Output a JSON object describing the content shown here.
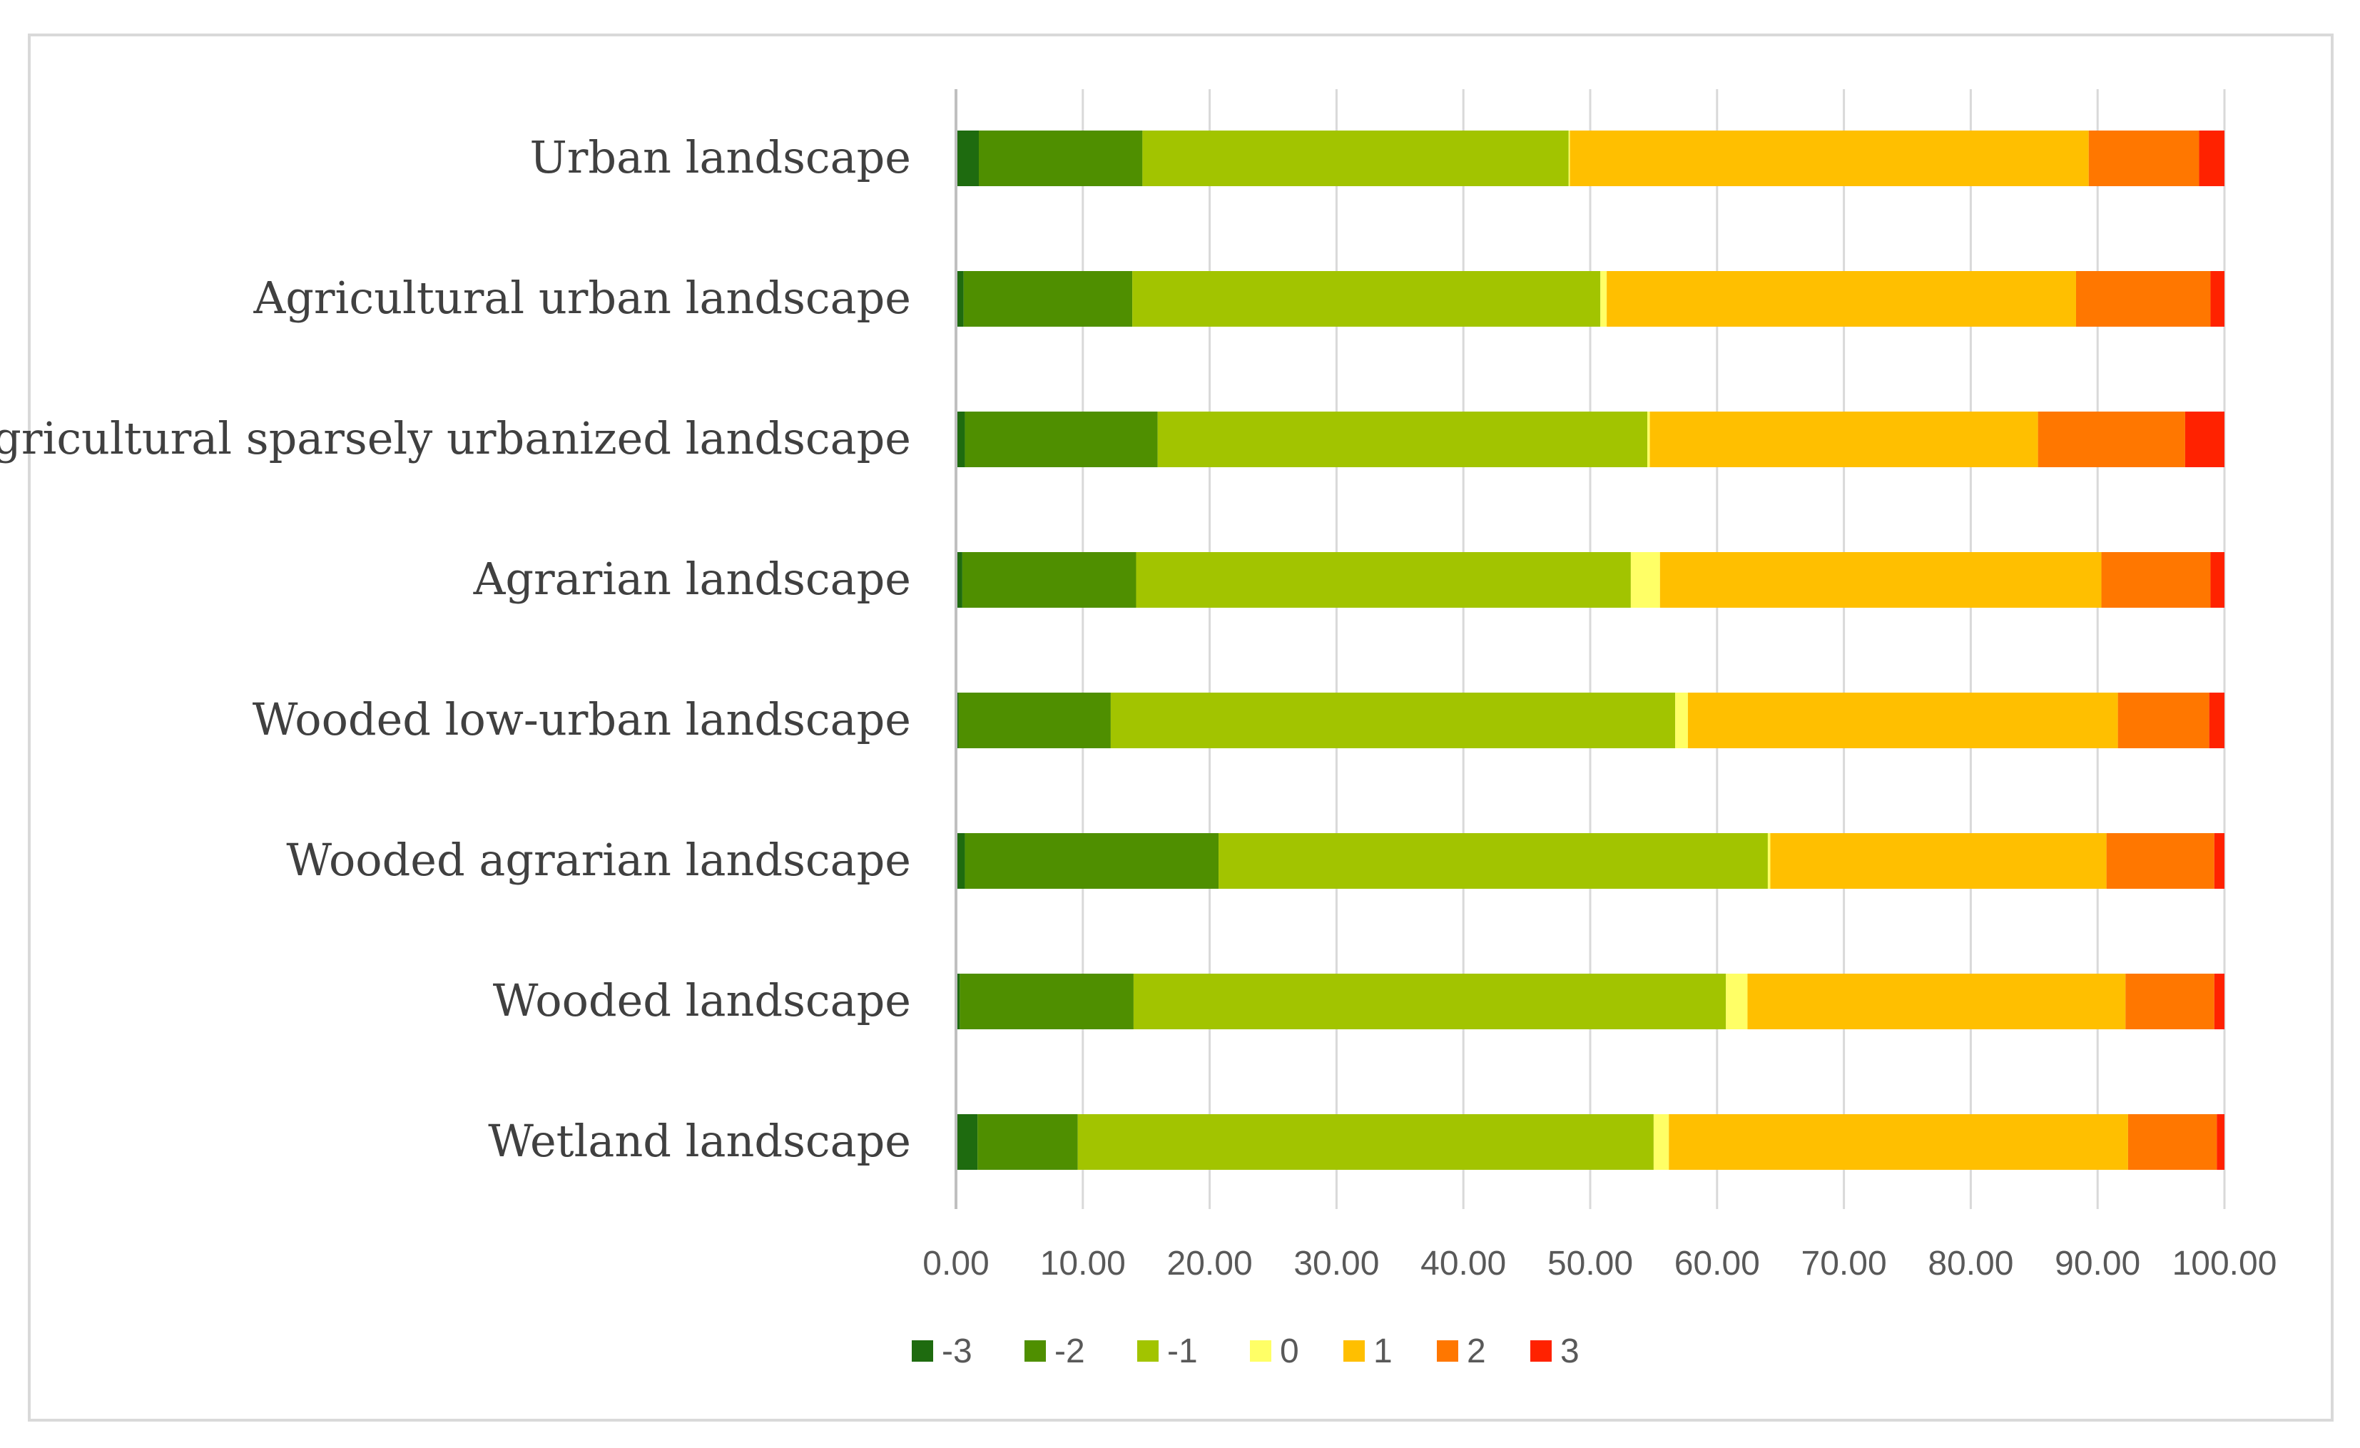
{
  "chart_data": {
    "type": "bar",
    "orientation": "horizontal",
    "stacked": true,
    "title": "",
    "xlabel": "",
    "ylabel": "",
    "xlim": [
      0,
      100
    ],
    "xticks": [
      "0.00",
      "10.00",
      "20.00",
      "30.00",
      "40.00",
      "50.00",
      "60.00",
      "70.00",
      "80.00",
      "90.00",
      "100.00"
    ],
    "grid": true,
    "legend_position": "bottom",
    "categories": [
      "Urban landscape",
      "Agricultural urban landscape",
      "Agricultural sparsely urbanized landscape",
      "Agrarian landscape",
      "Wooded low-urban landscape",
      "Wooded agrarian landscape",
      "Wooded landscape",
      "Wetland landscape"
    ],
    "series": [
      {
        "name": "-3",
        "color": "#1e6b0f",
        "values": [
          1.8,
          0.6,
          0.7,
          0.5,
          0.2,
          0.7,
          0.3,
          1.7
        ]
      },
      {
        "name": "-2",
        "color": "#4f8f00",
        "values": [
          12.9,
          13.3,
          15.2,
          13.7,
          12.0,
          20.0,
          13.7,
          7.9
        ]
      },
      {
        "name": "-1",
        "color": "#a2c400",
        "values": [
          33.6,
          36.9,
          38.6,
          39.0,
          44.5,
          43.3,
          46.7,
          45.4
        ]
      },
      {
        "name": "0",
        "color": "#ffff66",
        "values": [
          0.1,
          0.5,
          0.2,
          2.3,
          1.0,
          0.2,
          1.7,
          1.2
        ]
      },
      {
        "name": "1",
        "color": "#ffbf00",
        "values": [
          40.9,
          37.0,
          30.6,
          34.8,
          33.9,
          26.5,
          29.8,
          36.2
        ]
      },
      {
        "name": "2",
        "color": "#ff7700",
        "values": [
          8.7,
          10.6,
          11.6,
          8.6,
          7.2,
          8.5,
          7.0,
          7.0
        ]
      },
      {
        "name": "3",
        "color": "#ff2200",
        "values": [
          2.0,
          1.1,
          3.1,
          1.1,
          1.2,
          0.8,
          0.8,
          0.6
        ]
      }
    ]
  }
}
